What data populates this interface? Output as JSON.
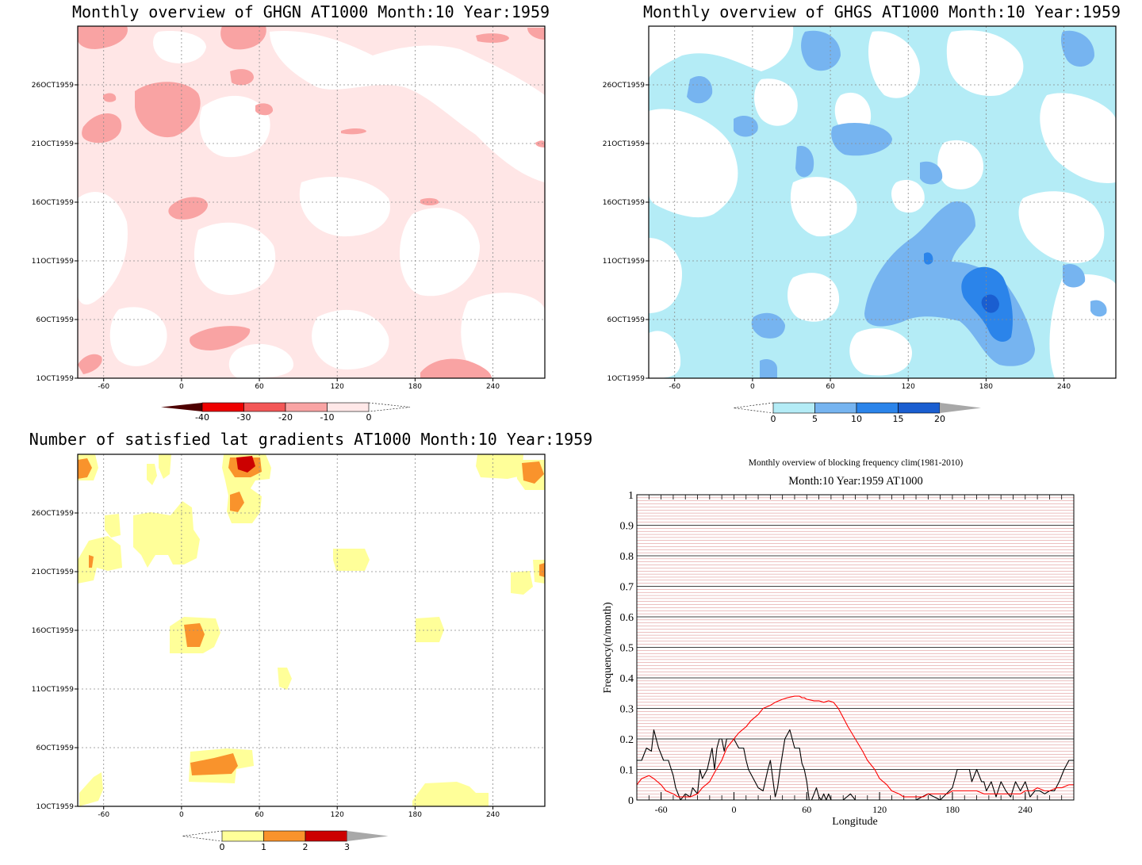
{
  "chart_data": [
    {
      "type": "heatmap",
      "title": "Monthly overview of GHGN AT1000 Month:10 Year:1959",
      "x_ticks": [
        -60,
        0,
        60,
        120,
        180,
        240
      ],
      "xlim": [
        -80,
        280
      ],
      "y_ticks": [
        "1OCT1959",
        "6OCT1959",
        "11OCT1959",
        "16OCT1959",
        "21OCT1959",
        "26OCT1959"
      ],
      "grid": true,
      "colorbar": {
        "ticks": [
          "-40",
          "-30",
          "-20",
          "-10",
          "0"
        ],
        "colors": [
          "#4d0000",
          "#ee0000",
          "#f35757",
          "#f9a4a4",
          "#ffe8e8"
        ]
      },
      "field_colors": [
        "#ffffff",
        "#ffe6e6",
        "#f9a3a3"
      ]
    },
    {
      "type": "heatmap",
      "title": "Monthly overview of GHGS AT1000 Month:10 Year:1959",
      "x_ticks": [
        -60,
        0,
        60,
        120,
        180,
        240
      ],
      "xlim": [
        -80,
        280
      ],
      "y_ticks": [
        "1OCT1959",
        "6OCT1959",
        "11OCT1959",
        "16OCT1959",
        "21OCT1959",
        "26OCT1959"
      ],
      "grid": true,
      "colorbar": {
        "ticks": [
          "0",
          "5",
          "10",
          "15",
          "20"
        ],
        "colors": [
          "#b4ecf6",
          "#76b4f0",
          "#2b84ea",
          "#1a5ed0",
          "#a8a8a8"
        ]
      },
      "field_colors": [
        "#ffffff",
        "#b4ecf6",
        "#76b4f0",
        "#2b84ea",
        "#1a5ed0"
      ]
    },
    {
      "type": "heatmap",
      "title": "Number of satisfied lat gradients AT1000 Month:10 Year:1959",
      "x_ticks": [
        -60,
        0,
        60,
        120,
        180,
        240
      ],
      "xlim": [
        -80,
        280
      ],
      "y_ticks": [
        "1OCT1959",
        "6OCT1959",
        "11OCT1959",
        "16OCT1959",
        "21OCT1959",
        "26OCT1959"
      ],
      "grid": true,
      "colorbar": {
        "ticks": [
          "0",
          "1",
          "2",
          "3"
        ],
        "colors": [
          "#ffff99",
          "#f9932c",
          "#cc0000",
          "#a8a8a8"
        ]
      },
      "field_colors": [
        "#ffffff",
        "#ffff99",
        "#f9932c",
        "#cc0000"
      ]
    },
    {
      "type": "line",
      "title": "Monthly overview of blocking frequency clim(1981-2010)",
      "subtitle": "Month:10 Year:1959  AT1000",
      "xlabel": "Longitude",
      "ylabel": "Frequency(n/month)",
      "xlim": [
        -80,
        280
      ],
      "ylim": [
        0,
        1
      ],
      "x_ticks": [
        -60,
        0,
        60,
        120,
        180,
        240
      ],
      "y_ticks": [
        "0",
        "0.1",
        "0.2",
        "0.3",
        "0.4",
        "0.5",
        "0.6",
        "0.7",
        "0.8",
        "0.9",
        "1"
      ],
      "grid": true,
      "series": [
        {
          "color": "#000000",
          "x": [
            -80,
            -76,
            -72,
            -68,
            -66,
            -62,
            -58,
            -54,
            -50,
            -48,
            -44,
            -40,
            -36,
            -34,
            -30,
            -28,
            -26,
            -22,
            -18,
            -16,
            -14,
            -12,
            -10,
            -8,
            -6,
            -4,
            0,
            4,
            8,
            10,
            12,
            16,
            20,
            24,
            28,
            30,
            32,
            34,
            36,
            38,
            42,
            46,
            50,
            54,
            56,
            58,
            60,
            62,
            64,
            66,
            68,
            70,
            72,
            74,
            76,
            78,
            80,
            86,
            90,
            96,
            100,
            106,
            110,
            116,
            120,
            130,
            140,
            150,
            160,
            170,
            180,
            184,
            188,
            194,
            196,
            200,
            204,
            206,
            208,
            212,
            216,
            220,
            224,
            228,
            232,
            236,
            240,
            244,
            248,
            252,
            256,
            260,
            264,
            268,
            272,
            276,
            280
          ],
          "y": [
            0.13,
            0.13,
            0.17,
            0.16,
            0.23,
            0.17,
            0.13,
            0.13,
            0.08,
            0.04,
            0.0,
            0.02,
            0.01,
            0.04,
            0.02,
            0.1,
            0.07,
            0.1,
            0.17,
            0.1,
            0.17,
            0.2,
            0.2,
            0.16,
            0.2,
            0.2,
            0.2,
            0.17,
            0.17,
            0.13,
            0.1,
            0.07,
            0.04,
            0.03,
            0.1,
            0.13,
            0.07,
            0.01,
            0.04,
            0.1,
            0.2,
            0.23,
            0.17,
            0.17,
            0.12,
            0.1,
            0.06,
            0.0,
            0.0,
            0.02,
            0.04,
            0.01,
            0.0,
            0.02,
            0.0,
            0.02,
            0.0,
            0.0,
            0.0,
            0.02,
            0.0,
            0.0,
            0.0,
            0.0,
            0.0,
            0.0,
            0.0,
            0.0,
            0.02,
            0.0,
            0.04,
            0.1,
            0.1,
            0.1,
            0.06,
            0.1,
            0.06,
            0.06,
            0.03,
            0.06,
            0.01,
            0.06,
            0.03,
            0.01,
            0.06,
            0.03,
            0.06,
            0.01,
            0.03,
            0.03,
            0.02,
            0.03,
            0.03,
            0.06,
            0.1,
            0.13,
            0.13
          ]
        },
        {
          "color": "#ff0000",
          "x": [
            -80,
            -76,
            -70,
            -66,
            -60,
            -56,
            -50,
            -46,
            -40,
            -36,
            -30,
            -26,
            -20,
            -16,
            -10,
            -6,
            0,
            4,
            10,
            14,
            20,
            24,
            30,
            34,
            40,
            44,
            50,
            54,
            56,
            58,
            60,
            66,
            70,
            74,
            78,
            82,
            86,
            90,
            94,
            100,
            106,
            110,
            116,
            120,
            126,
            130,
            136,
            140,
            146,
            150,
            156,
            160,
            166,
            170,
            176,
            180,
            186,
            190,
            196,
            200,
            206,
            210,
            216,
            220,
            226,
            230,
            236,
            240,
            246,
            250,
            256,
            260,
            266,
            270,
            276,
            280
          ],
          "y": [
            0.05,
            0.07,
            0.08,
            0.07,
            0.05,
            0.03,
            0.02,
            0.01,
            0.01,
            0.01,
            0.02,
            0.04,
            0.06,
            0.09,
            0.13,
            0.17,
            0.2,
            0.22,
            0.24,
            0.26,
            0.28,
            0.3,
            0.31,
            0.32,
            0.33,
            0.335,
            0.34,
            0.34,
            0.335,
            0.335,
            0.33,
            0.325,
            0.325,
            0.32,
            0.325,
            0.32,
            0.3,
            0.27,
            0.24,
            0.2,
            0.16,
            0.13,
            0.1,
            0.07,
            0.05,
            0.03,
            0.02,
            0.01,
            0.01,
            0.01,
            0.01,
            0.02,
            0.02,
            0.02,
            0.02,
            0.03,
            0.03,
            0.03,
            0.03,
            0.03,
            0.02,
            0.02,
            0.02,
            0.02,
            0.02,
            0.02,
            0.02,
            0.03,
            0.03,
            0.04,
            0.03,
            0.03,
            0.04,
            0.04,
            0.05,
            0.05
          ]
        }
      ]
    }
  ]
}
